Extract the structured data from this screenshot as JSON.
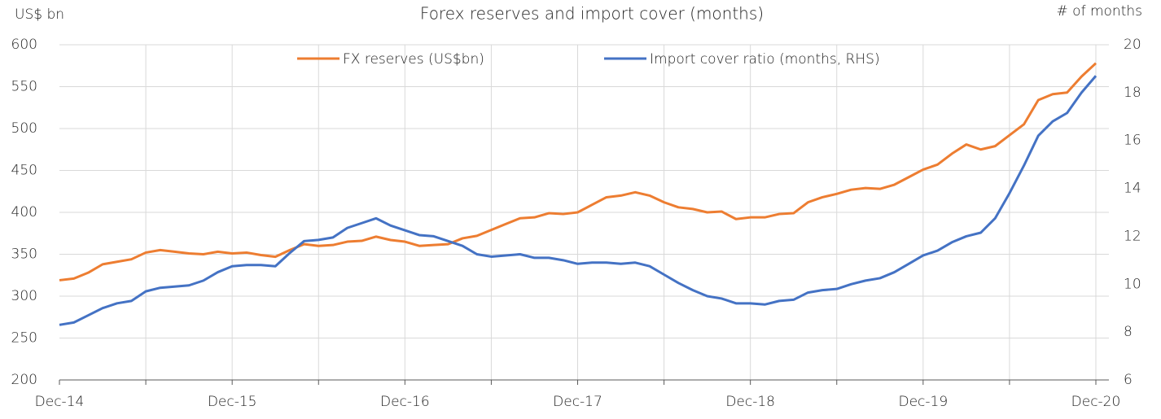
{
  "chart_data": {
    "type": "line",
    "title": "Forex reserves and import cover (months)",
    "y_label": "US$ bn",
    "y2_label": "# of months",
    "categories": [
      "Dec-14",
      null,
      null,
      null,
      null,
      null,
      null,
      null,
      null,
      null,
      null,
      null,
      "Dec-15",
      null,
      null,
      null,
      null,
      null,
      null,
      null,
      null,
      null,
      null,
      null,
      "Dec-16",
      null,
      null,
      null,
      null,
      null,
      null,
      null,
      null,
      null,
      null,
      null,
      "Dec-17",
      null,
      null,
      null,
      null,
      null,
      null,
      null,
      null,
      null,
      null,
      null,
      "Dec-18",
      null,
      null,
      null,
      null,
      null,
      null,
      null,
      null,
      null,
      null,
      null,
      "Dec-19",
      null,
      null,
      null,
      null,
      null,
      null,
      null,
      null,
      null,
      null,
      null,
      "Dec-20"
    ],
    "series": [
      {
        "name": "FX reserves (US$bn)",
        "color": "#ed7d31",
        "axis": "y",
        "values": [
          319,
          321,
          328,
          338,
          341,
          344,
          352,
          355,
          353,
          351,
          350,
          353,
          351,
          352,
          349,
          347,
          355,
          362,
          360,
          361,
          365,
          366,
          371,
          367,
          365,
          360,
          361,
          362,
          369,
          372,
          379,
          386,
          393,
          394,
          399,
          398,
          400,
          409,
          418,
          420,
          424,
          420,
          412,
          406,
          404,
          400,
          401,
          392,
          394,
          394,
          398,
          399,
          412,
          418,
          422,
          427,
          429,
          428,
          433,
          442,
          451,
          457,
          470,
          481,
          475,
          479,
          492,
          505,
          534,
          541,
          543,
          562,
          578
        ]
      },
      {
        "name": "Import cover ratio (months, RHS)",
        "color": "#4472c4",
        "axis": "y2",
        "values": [
          8.3,
          8.4,
          8.7,
          9.0,
          9.2,
          9.3,
          9.7,
          9.85,
          9.9,
          9.95,
          10.15,
          10.5,
          10.75,
          10.8,
          10.8,
          10.75,
          11.3,
          11.8,
          11.85,
          11.95,
          12.35,
          12.55,
          12.75,
          12.45,
          12.25,
          12.05,
          12.0,
          11.8,
          11.6,
          11.25,
          11.15,
          11.2,
          11.25,
          11.1,
          11.1,
          11.0,
          10.85,
          10.9,
          10.9,
          10.85,
          10.9,
          10.75,
          10.4,
          10.05,
          9.75,
          9.5,
          9.4,
          9.2,
          9.2,
          9.15,
          9.3,
          9.35,
          9.65,
          9.75,
          9.8,
          10.0,
          10.15,
          10.25,
          10.5,
          10.85,
          11.2,
          11.4,
          11.75,
          12.0,
          12.15,
          12.75,
          13.8,
          14.95,
          16.2,
          16.8,
          17.15,
          18.0,
          18.7
        ]
      }
    ],
    "ylim": [
      200,
      600
    ],
    "yticks": [
      200,
      250,
      300,
      350,
      400,
      450,
      500,
      550,
      600
    ],
    "y2lim": [
      6,
      20
    ],
    "y2ticks": [
      6,
      8,
      10,
      12,
      14,
      16,
      18,
      20
    ],
    "grid": true,
    "legend": "top"
  }
}
